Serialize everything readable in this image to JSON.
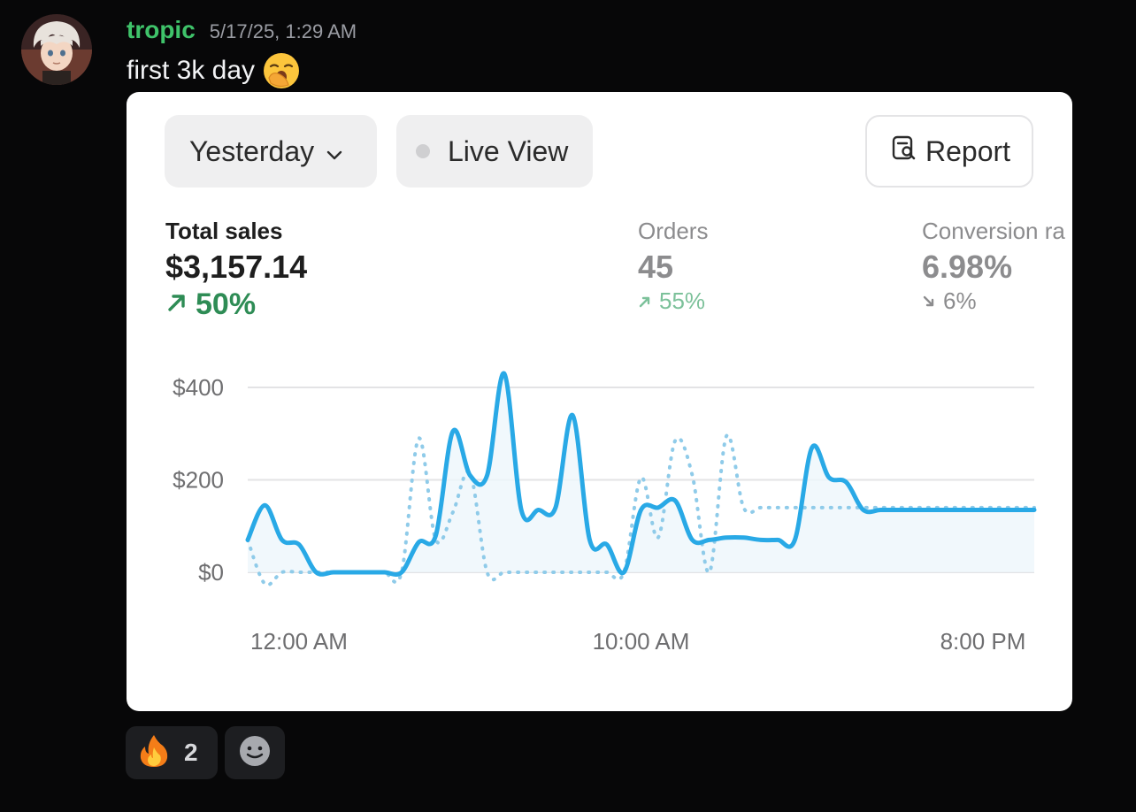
{
  "message": {
    "username": "tropic",
    "timestamp": "5/17/25, 1:29 AM",
    "text": "first 3k day",
    "emoji": "yawning-face-emoji"
  },
  "card": {
    "date_filter": "Yesterday",
    "live_view": "Live View",
    "report": "Report",
    "metrics": {
      "sales": {
        "label": "Total sales",
        "value": "$3,157.14",
        "change": "50%",
        "direction": "up"
      },
      "orders": {
        "label": "Orders",
        "value": "45",
        "change": "55%",
        "direction": "up"
      },
      "conversion": {
        "label": "Conversion ra",
        "value": "6.98%",
        "change": "6%",
        "direction": "down"
      }
    }
  },
  "chart_data": {
    "type": "line",
    "x_ticks": [
      "12:00 AM",
      "10:00 AM",
      "8:00 PM"
    ],
    "y_ticks": [
      "$400",
      "$200",
      "$0"
    ],
    "ylim": [
      0,
      400
    ],
    "grid": true,
    "colors": {
      "current": "#29a9e6",
      "previous": "#8fcbe9"
    },
    "series": [
      {
        "style": "solid",
        "x": [
          0,
          0.5,
          1,
          1.5,
          2,
          2.5,
          3,
          3.5,
          4,
          4.5,
          5,
          5.5,
          6,
          6.5,
          7,
          7.5,
          8,
          8.5,
          9,
          9.5,
          10,
          10.5,
          11,
          11.5,
          12,
          12.5,
          13,
          13.5,
          14,
          14.5,
          15,
          15.5,
          16,
          16.5,
          17,
          17.5,
          18,
          18.5,
          19,
          19.5,
          20,
          20.5,
          21,
          21.5,
          22,
          22.5,
          23
        ],
        "values": [
          70,
          145,
          70,
          60,
          0,
          0,
          0,
          0,
          0,
          0,
          65,
          80,
          305,
          210,
          210,
          430,
          135,
          135,
          140,
          340,
          70,
          60,
          0,
          135,
          140,
          155,
          70,
          70,
          75,
          75,
          70,
          70,
          70,
          270,
          205,
          195,
          135,
          135,
          135,
          135,
          135,
          135,
          135,
          135,
          135,
          135,
          135
        ]
      },
      {
        "style": "dotted",
        "x": [
          0,
          0.5,
          1,
          1.5,
          2,
          2.5,
          3,
          3.5,
          4,
          4.5,
          5,
          5.5,
          6,
          6.5,
          7,
          7.5,
          8,
          8.5,
          9,
          9.5,
          10,
          10.5,
          11,
          11.5,
          12,
          12.5,
          13,
          13.5,
          14,
          14.5,
          15,
          15.5,
          16,
          16.5,
          17,
          17.5,
          18,
          18.5,
          19,
          19.5,
          20,
          20.5,
          21,
          21.5,
          22,
          22.5,
          23
        ],
        "values": [
          70,
          -25,
          0,
          0,
          0,
          0,
          0,
          0,
          0,
          0,
          290,
          70,
          130,
          215,
          0,
          0,
          0,
          0,
          0,
          0,
          0,
          0,
          0,
          205,
          75,
          285,
          210,
          0,
          295,
          140,
          140,
          140,
          140,
          140,
          140,
          140,
          140,
          140,
          140,
          140,
          140,
          140,
          140,
          140,
          140,
          140,
          140
        ]
      }
    ]
  },
  "reactions": [
    {
      "emoji": "fire-emoji",
      "count": "2"
    },
    {
      "emoji": "add-reaction-icon",
      "count": ""
    }
  ]
}
